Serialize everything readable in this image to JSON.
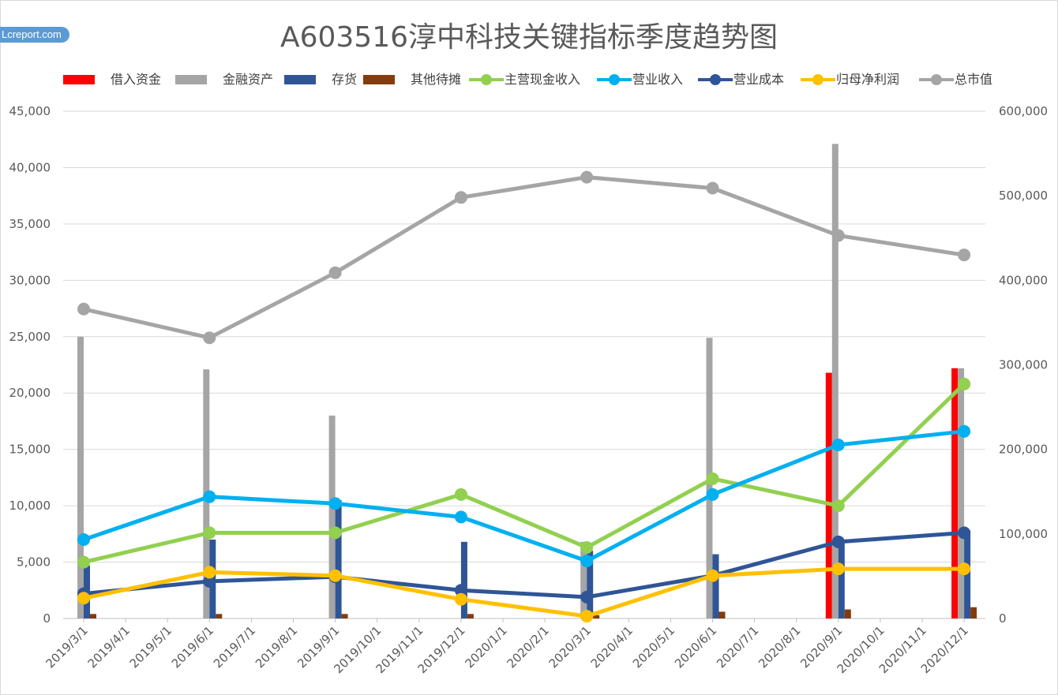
{
  "title": "A603516淳中科技关键指标季度趋势图",
  "watermark": "Lcreport.com",
  "colors": {
    "借入资金": "#ff0000",
    "金融资产": "#a5a5a5",
    "存货": "#2f5597",
    "其他待摊": "#843c0c",
    "主营现金收入": "#92d050",
    "营业收入": "#00b0f0",
    "营业成本": "#2f5597",
    "归母净利润": "#ffc000",
    "总市值": "#a5a5a5"
  },
  "chart_data": {
    "type": "bar+line",
    "x_ticks": [
      "2019/3/1",
      "2019/4/1",
      "2019/5/1",
      "2019/6/1",
      "2019/7/1",
      "2019/8/1",
      "2019/9/1",
      "2019/10/1",
      "2019/11/1",
      "2019/12/1",
      "2020/1/1",
      "2020/2/1",
      "2020/3/1",
      "2020/4/1",
      "2020/5/1",
      "2020/6/1",
      "2020/7/1",
      "2020/8/1",
      "2020/9/1",
      "2020/10/1",
      "2020/11/1",
      "2020/12/1"
    ],
    "dates": [
      "2019/3/1",
      "2019/6/1",
      "2019/9/1",
      "2019/12/1",
      "2020/3/1",
      "2020/6/1",
      "2020/9/1",
      "2020/12/1"
    ],
    "y_left": {
      "min": 0,
      "max": 45000,
      "ticks": [
        "0",
        "5,000",
        "10,000",
        "15,000",
        "20,000",
        "25,000",
        "30,000",
        "35,000",
        "40,000",
        "45,000"
      ]
    },
    "y_right": {
      "min": 0,
      "max": 600000,
      "ticks": [
        "0",
        "100,000",
        "200,000",
        "300,000",
        "400,000",
        "500,000",
        "600,000"
      ]
    },
    "grid": true,
    "legend_position": "top",
    "bar_series": [
      {
        "name": "借入资金",
        "axis": "left",
        "values": [
          0,
          0,
          0,
          0,
          0,
          0,
          21800,
          22200
        ]
      },
      {
        "name": "金融资产",
        "axis": "left",
        "values": [
          25000,
          22100,
          18000,
          0,
          6800,
          24900,
          42100,
          22200
        ]
      },
      {
        "name": "存货",
        "axis": "left",
        "values": [
          4700,
          7000,
          10500,
          6800,
          6000,
          5700,
          6800,
          7800
        ]
      },
      {
        "name": "其他待摊",
        "axis": "left",
        "values": [
          400,
          400,
          400,
          400,
          300,
          600,
          800,
          1000
        ]
      }
    ],
    "line_series": [
      {
        "name": "主营现金收入",
        "axis": "left",
        "values": [
          5000,
          7600,
          7600,
          11000,
          6300,
          12400,
          10000,
          20800
        ]
      },
      {
        "name": "营业收入",
        "axis": "left",
        "values": [
          7000,
          10800,
          10200,
          9000,
          5100,
          11000,
          15400,
          16600
        ]
      },
      {
        "name": "营业成本",
        "axis": "left",
        "values": [
          2200,
          3300,
          3700,
          2500,
          1900,
          3800,
          6800,
          7600
        ]
      },
      {
        "name": "归母净利润",
        "axis": "left",
        "values": [
          1800,
          4100,
          3800,
          1700,
          200,
          3800,
          4400,
          4400
        ]
      },
      {
        "name": "总市值",
        "axis": "right",
        "values": [
          366000,
          332000,
          409000,
          498000,
          522000,
          509000,
          453000,
          430000
        ]
      }
    ]
  }
}
